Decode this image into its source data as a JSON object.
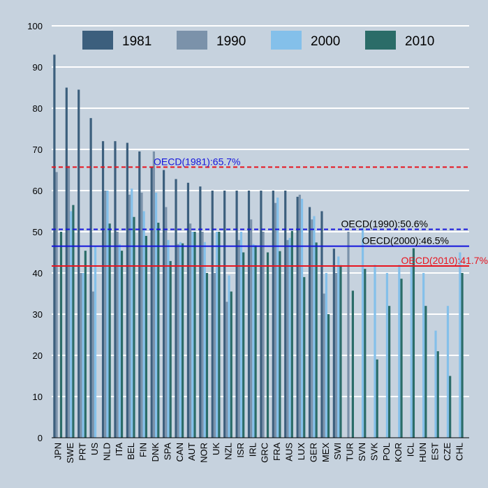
{
  "chart_data": {
    "type": "bar",
    "title": "",
    "xlabel": "",
    "ylabel": "",
    "ylim": [
      0,
      100
    ],
    "yticks": [
      0,
      10,
      20,
      30,
      40,
      50,
      60,
      70,
      80,
      90,
      100
    ],
    "grid": true,
    "legend_position": "top",
    "categories": [
      "JPN",
      "SWE",
      "PRT",
      "US",
      "NLD",
      "ITA",
      "BEL",
      "FIN",
      "DNK",
      "SPA",
      "CAN",
      "AUT",
      "NOR",
      "UK",
      "NZL",
      "ISR",
      "IRL",
      "GRC",
      "FRA",
      "AUS",
      "LUX",
      "GER",
      "MEX",
      "SWI",
      "TUR",
      "SVN",
      "SVK",
      "POL",
      "KOR",
      "ICL",
      "HUN",
      "EST",
      "CZE",
      "CHL"
    ],
    "series": [
      {
        "name": "1981",
        "color": "#3c5f7d",
        "values": [
          93,
          85,
          84.5,
          77.6,
          72,
          72,
          71.6,
          69.5,
          65.7,
          65,
          62.8,
          61.9,
          61,
          60,
          60,
          60,
          60,
          60,
          60,
          60,
          58.5,
          56,
          55,
          45.9,
          null,
          null,
          null,
          null,
          null,
          null,
          null,
          null,
          null,
          null
        ]
      },
      {
        "name": "1990",
        "color": "#7b92aa",
        "values": [
          64.5,
          66,
          40,
          35.5,
          60,
          50,
          59,
          59.5,
          69.5,
          56,
          47,
          52,
          50,
          40,
          33,
          48,
          53,
          50,
          57,
          48,
          59,
          53,
          35,
          40,
          50,
          null,
          null,
          null,
          null,
          null,
          null,
          null,
          null,
          null
        ]
      },
      {
        "name": "2000",
        "color": "#84c0ea",
        "values": [
          null,
          55,
          40,
          46.5,
          60,
          47,
          60.5,
          55,
          59.5,
          48,
          47.5,
          50,
          47.5,
          50,
          39.4,
          50,
          47,
          null,
          58.3,
          48.5,
          58,
          53.8,
          40,
          44,
          null,
          51,
          42,
          40,
          42,
          42,
          40,
          26,
          32,
          45
        ]
      },
      {
        "name": "2010",
        "color": "#2b6c68",
        "values": [
          50,
          56.5,
          45.4,
          null,
          52,
          45.4,
          53.6,
          49,
          52.2,
          42.9,
          47.2,
          50,
          40,
          50,
          35.5,
          45,
          46.7,
          45,
          45.3,
          50.2,
          39,
          47.4,
          30,
          41.9,
          35.7,
          41,
          19,
          32,
          38.6,
          46,
          32,
          21,
          15,
          40
        ]
      }
    ],
    "reference_lines": [
      {
        "label": "OECD(1981):65.7%",
        "value": 65.7,
        "color": "#e8141e",
        "style": "dashed",
        "label_color": "#1414dc"
      },
      {
        "label": "OECD(1990):50.6%",
        "value": 50.6,
        "color": "#1414dc",
        "style": "dashed",
        "label_color": "#000000"
      },
      {
        "label": "OECD(2000):46.5%",
        "value": 46.5,
        "color": "#1414dc",
        "style": "solid",
        "label_color": "#000000"
      },
      {
        "label": "OECD(2010):41.7%",
        "value": 41.7,
        "color": "#e8141e",
        "style": "solid",
        "label_color": "#e8141e"
      }
    ]
  }
}
